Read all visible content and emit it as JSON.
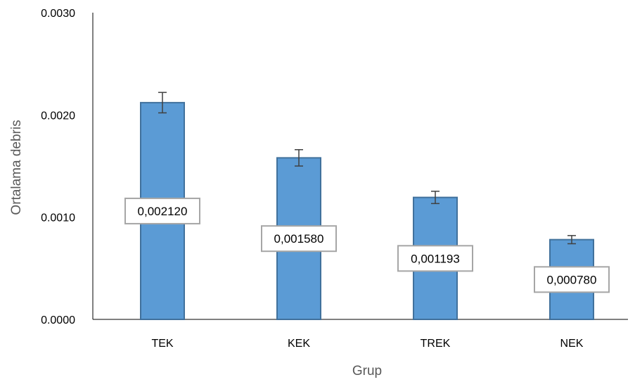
{
  "chart_data": {
    "type": "bar",
    "xlabel": "Grup",
    "ylabel": "Ortalama debris",
    "categories": [
      "TEK",
      "KEK",
      "TREK",
      "NEK"
    ],
    "values": [
      0.00212,
      0.00158,
      0.001193,
      0.00078
    ],
    "error_bars": [
      0.0001,
      8e-05,
      6e-05,
      4e-05
    ],
    "data_labels": [
      "0,002120",
      "0,001580",
      "0,001193",
      "0,000780"
    ],
    "y_ticks": [
      "0.0000",
      "0.0010",
      "0.0020",
      "0.0030"
    ],
    "ylim": [
      0,
      0.003
    ],
    "grid": false,
    "colors": {
      "bar_fill": "#5b9bd5",
      "bar_stroke": "#41719c",
      "error_bar": "#404040",
      "label_border": "#a6a6a6",
      "axis_title": "#595959"
    }
  }
}
